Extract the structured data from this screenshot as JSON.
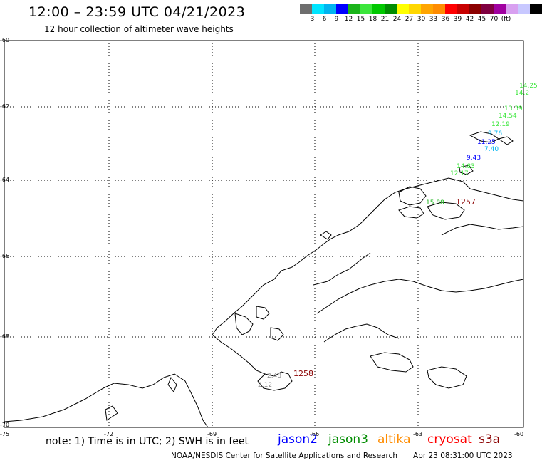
{
  "header": {
    "title": "12:00 – 23:59 UTC 04/21/2023",
    "subtitle": "12 hour collection of altimeter wave heights"
  },
  "colorbar": {
    "colors": [
      "#6e6e6e",
      "#00e5ff",
      "#00b4f0",
      "#0000ff",
      "#1ab41a",
      "#3ce63c",
      "#00c800",
      "#008c00",
      "#ffff00",
      "#ffd700",
      "#ffa500",
      "#ff8c00",
      "#ff0000",
      "#c80000",
      "#8b0000",
      "#800040",
      "#a000a0",
      "#d8a0f0",
      "#c8c8ff",
      "#000000"
    ],
    "ticks": [
      "3",
      "6",
      "9",
      "12",
      "15",
      "18",
      "21",
      "24",
      "27",
      "30",
      "33",
      "36",
      "39",
      "42",
      "45",
      "70",
      "(ft)"
    ]
  },
  "axes": {
    "lat_labels": [
      "-60",
      "-62",
      "-64",
      "-66",
      "-68",
      "-70"
    ],
    "lon_labels": [
      "-75",
      "-72",
      "-69",
      "-66",
      "-63",
      "-60"
    ]
  },
  "observations": [
    {
      "text": "14.25",
      "color": "#3ce63c"
    },
    {
      "text": "14.2",
      "color": "#3ce63c"
    },
    {
      "text": "13.39",
      "color": "#3ce63c"
    },
    {
      "text": "14.54",
      "color": "#3ce63c"
    },
    {
      "text": "12.19",
      "color": "#3ce63c"
    },
    {
      "text": "9.76",
      "color": "#00b4f0"
    },
    {
      "text": "11.25",
      "color": "#0000ff"
    },
    {
      "text": "7.40",
      "color": "#00b4f0"
    },
    {
      "text": "9.43",
      "color": "#0000ff"
    },
    {
      "text": "14.83",
      "color": "#3ce63c"
    },
    {
      "text": "12.17",
      "color": "#3ce63c"
    },
    {
      "text": "15.88",
      "color": "#1ab41a"
    },
    {
      "text": "1257",
      "color": "#8b0000"
    },
    {
      "text": "2.48",
      "color": "#888888"
    },
    {
      "text": "2.12",
      "color": "#888888"
    },
    {
      "text": "1258",
      "color": "#8b0000"
    }
  ],
  "footer": {
    "note": "note: 1) Time is in UTC; 2) SWH is in feet",
    "satellites": [
      {
        "name": "jason2",
        "color": "#0000ff"
      },
      {
        "name": "jason3",
        "color": "#008c00"
      },
      {
        "name": "altika",
        "color": "#ff8c00"
      },
      {
        "name": "cryosat",
        "color": "#ff0000"
      },
      {
        "name": "s3a",
        "color": "#8b0000"
      }
    ],
    "credit": "NOAA/NESDIS Center for Satellite Applications and Research",
    "timestamp": "Apr 23 08:31:00 UTC 2023"
  }
}
